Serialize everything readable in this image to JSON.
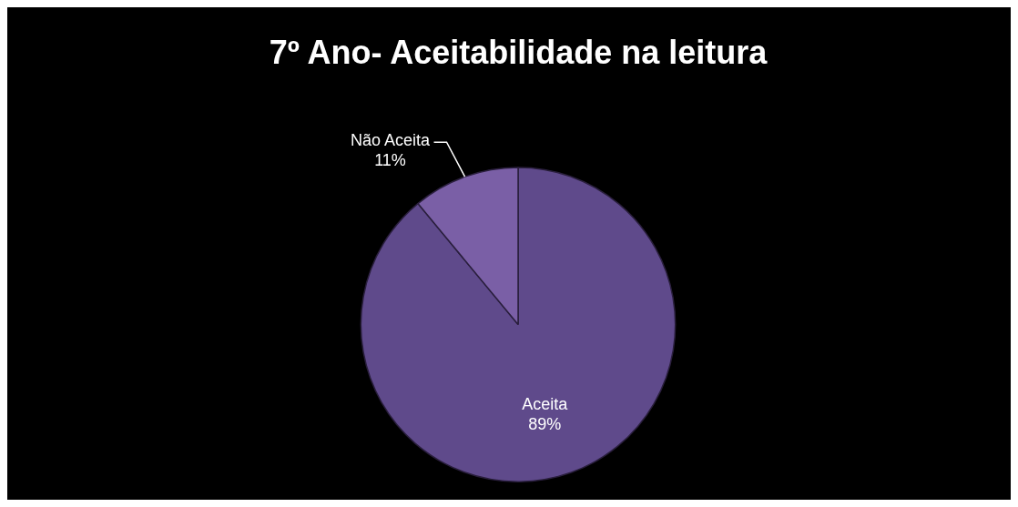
{
  "chart_data": {
    "type": "pie",
    "title": "7º Ano- Aceitabilidade na leitura",
    "categories": [
      "Aceita",
      "Não Aceita"
    ],
    "values": [
      89,
      11
    ],
    "colors": [
      "#5f4a8b",
      "#7a5fa6"
    ],
    "value_labels": [
      "89%",
      "11%"
    ],
    "legend": false
  }
}
